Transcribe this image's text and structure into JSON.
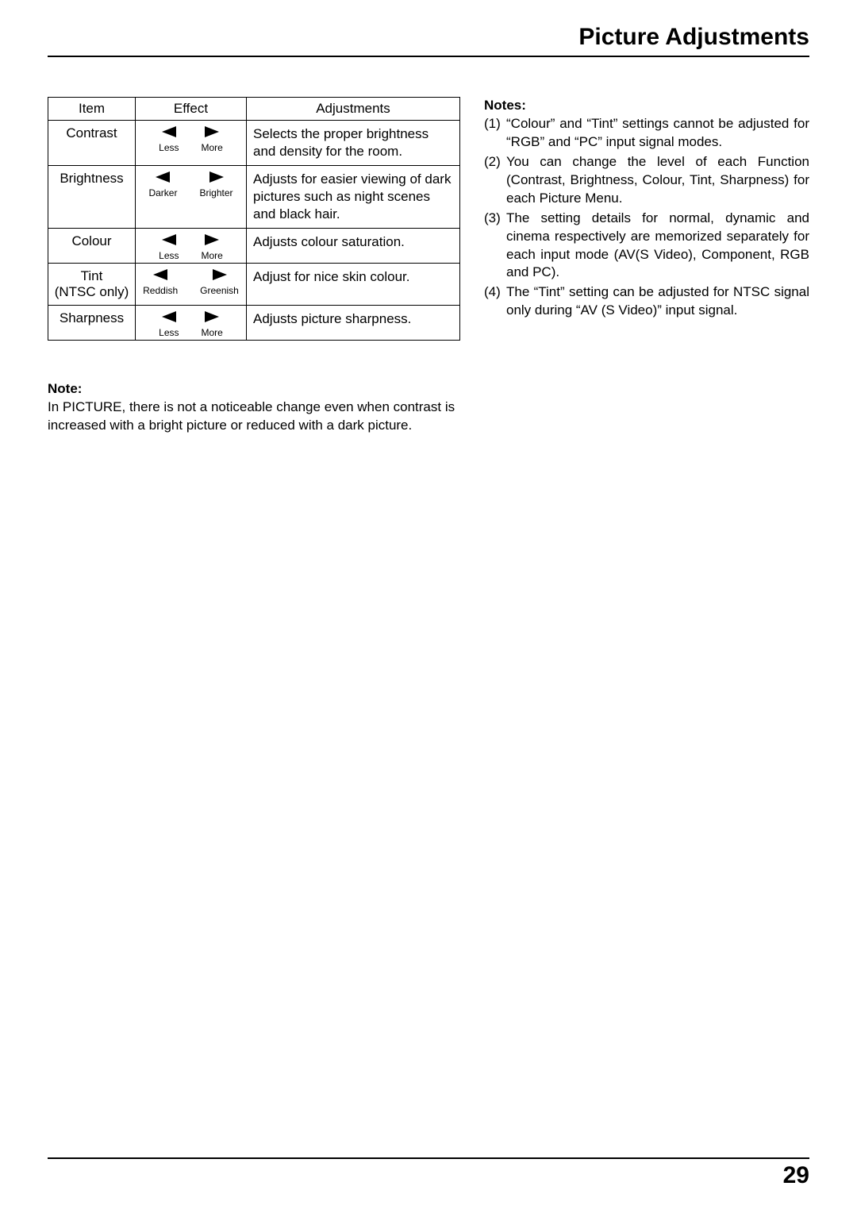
{
  "title": "Picture Adjustments",
  "table": {
    "headers": {
      "item": "Item",
      "effect": "Effect",
      "adjustments": "Adjustments"
    },
    "rows": [
      {
        "item": "Contrast",
        "left": "Less",
        "right": "More",
        "desc": "Selects the proper brightness and density for the room."
      },
      {
        "item": "Brightness",
        "left": "Darker",
        "right": "Brighter",
        "desc": "Adjusts for easier viewing of dark pictures such as night scenes and black hair."
      },
      {
        "item": "Colour",
        "left": "Less",
        "right": "More",
        "desc": "Adjusts colour saturation."
      },
      {
        "item": "Tint\n(NTSC only)",
        "left": "Reddish",
        "right": "Greenish",
        "desc": "Adjust for nice skin colour."
      },
      {
        "item": "Sharpness",
        "left": "Less",
        "right": "More",
        "desc": "Adjusts picture sharpness."
      }
    ]
  },
  "notes": {
    "heading": "Notes:",
    "items": [
      "“Colour” and “Tint” settings cannot be adjusted for “RGB” and “PC” input signal modes.",
      "You can change the level of each Function (Contrast, Brightness, Colour, Tint, Sharpness) for each Picture Menu.",
      "The setting details for normal, dynamic and cinema respectively are memorized separately for each input mode (AV(S Video), Component, RGB and PC).",
      "The “Tint” setting can be adjusted for NTSC signal only during “AV (S Video)” input signal."
    ]
  },
  "note2": {
    "heading": "Note:",
    "body": "In PICTURE, there is not a noticeable change even when contrast is increased with a bright picture or reduced with a dark picture."
  },
  "page_number": "29",
  "style": {
    "arrow_color": "#000000",
    "arrow_width": 18,
    "arrow_height": 14
  }
}
